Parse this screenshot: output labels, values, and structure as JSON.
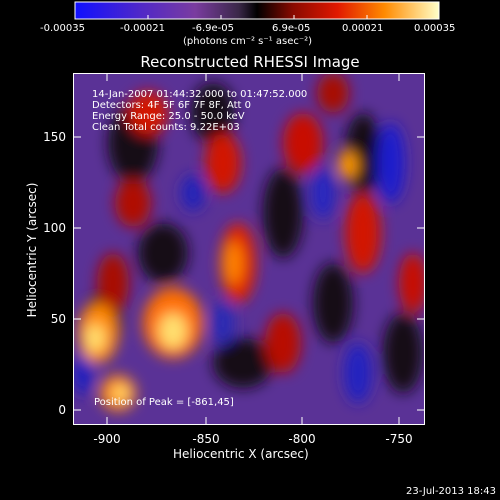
{
  "colorbar": {
    "tick_labels": [
      "-0.00035",
      "-0.00021",
      "-6.9e-05",
      "6.9e-05",
      "0.00021",
      "0.00035"
    ],
    "units_html": "(photons cm⁻² s⁻¹ asec⁻²)"
  },
  "image": {
    "title": "Reconstructed RHESSI Image",
    "info_lines": [
      "14-Jan-2007 01:44:32.000 to 01:47:52.000",
      "Detectors: 4F 5F 6F 7F 8F, Att 0",
      "Energy Range: 25.0 - 50.0 keV",
      "Clean    Total counts: 9.22E+03"
    ],
    "peak_label": "Position of Peak = [-861,45]",
    "x_axis_label": "Heliocentric X (arcsec)",
    "y_axis_label": "Heliocentric Y (arcsec)",
    "x_ticks": [
      "-900",
      "-850",
      "-800",
      "-750"
    ],
    "y_ticks": [
      "0",
      "50",
      "100",
      "150"
    ],
    "datestamp": "23-Jul-2013 18:43"
  }
}
